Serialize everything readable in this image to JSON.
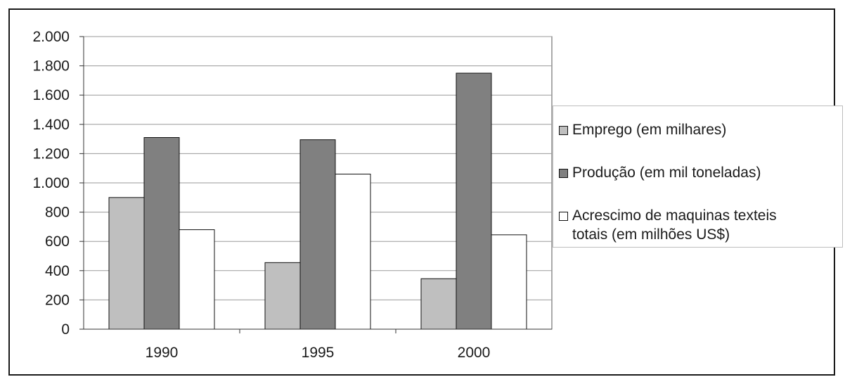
{
  "chart_data": {
    "type": "bar",
    "categories": [
      "1990",
      "1995",
      "2000"
    ],
    "series": [
      {
        "name": "Emprego (em milhares)",
        "color": "#bfbfbf",
        "values": [
          900,
          455,
          345
        ]
      },
      {
        "name": "Produção (em mil toneladas)",
        "color": "#808080",
        "values": [
          1310,
          1295,
          1750
        ]
      },
      {
        "name": "Acrescimo de maquinas texteis totais (em milhões US$)",
        "color": "#ffffff",
        "values": [
          680,
          1060,
          645
        ]
      }
    ],
    "ylim": [
      0,
      2000
    ],
    "yticks": [
      0,
      200,
      400,
      600,
      800,
      1000,
      1200,
      1400,
      1600,
      1800,
      2000
    ],
    "ytick_labels": [
      "0",
      "200",
      "400",
      "600",
      "800",
      "1.000",
      "1.200",
      "1.400",
      "1.600",
      "1.800",
      "2.000"
    ],
    "grid": true,
    "legend_position": "right",
    "legend": [
      "Emprego (em milhares)",
      "Produção (em mil toneladas)",
      "Acrescimo de maquinas texteis\ntotais (em milhões US$)"
    ]
  }
}
